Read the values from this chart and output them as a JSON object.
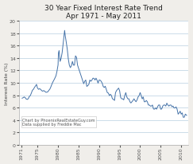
{
  "title_line1": "30 Year Fixed Interest Rate Trend",
  "title_line2": "Apr 1971 - May 2011",
  "ylabel": "Interest Rate (%)",
  "annotation1": "Chart by PhoenixRealEstateGuy.com",
  "annotation2": "Data supplied by Freddie Mac",
  "line_color": "#4472a8",
  "background_color": "#f0eeea",
  "plot_bg_color": "#ffffff",
  "ylim": [
    0,
    20
  ],
  "xlim": [
    1970.5,
    2011.8
  ],
  "yticks": [
    0,
    2,
    4,
    6,
    8,
    10,
    12,
    14,
    16,
    18,
    20
  ],
  "xtick_years": [
    1971,
    1975,
    1980,
    1985,
    1990,
    1995,
    2000,
    2005,
    2010
  ],
  "grid_color": "#b8cfe0",
  "title_fontsize": 6.5,
  "axis_fontsize": 4.5,
  "ylabel_fontsize": 4.5,
  "annotation_fontsize": 3.6,
  "data_years": [
    1971.25,
    1971.5,
    1971.75,
    1972.0,
    1972.25,
    1972.5,
    1972.75,
    1973.0,
    1973.25,
    1973.5,
    1973.75,
    1974.0,
    1974.25,
    1974.5,
    1974.75,
    1975.0,
    1975.25,
    1975.5,
    1975.75,
    1976.0,
    1976.25,
    1976.5,
    1976.75,
    1977.0,
    1977.25,
    1977.5,
    1977.75,
    1978.0,
    1978.25,
    1978.5,
    1978.75,
    1979.0,
    1979.25,
    1979.5,
    1979.75,
    1980.0,
    1980.1,
    1980.25,
    1980.5,
    1980.75,
    1981.0,
    1981.25,
    1981.5,
    1981.6,
    1981.75,
    1982.0,
    1982.25,
    1982.5,
    1982.75,
    1983.0,
    1983.25,
    1983.5,
    1983.75,
    1984.0,
    1984.25,
    1984.5,
    1984.75,
    1985.0,
    1985.25,
    1985.5,
    1985.75,
    1986.0,
    1986.25,
    1986.5,
    1986.75,
    1987.0,
    1987.25,
    1987.5,
    1987.75,
    1988.0,
    1988.25,
    1988.5,
    1988.75,
    1989.0,
    1989.25,
    1989.5,
    1989.75,
    1990.0,
    1990.25,
    1990.5,
    1990.75,
    1991.0,
    1991.25,
    1991.5,
    1991.75,
    1992.0,
    1992.25,
    1992.5,
    1992.75,
    1993.0,
    1993.25,
    1993.5,
    1993.75,
    1994.0,
    1994.25,
    1994.5,
    1994.75,
    1995.0,
    1995.25,
    1995.5,
    1995.75,
    1996.0,
    1996.25,
    1996.5,
    1996.75,
    1997.0,
    1997.25,
    1997.5,
    1997.75,
    1998.0,
    1998.25,
    1998.5,
    1998.75,
    1999.0,
    1999.25,
    1999.5,
    1999.75,
    2000.0,
    2000.25,
    2000.5,
    2000.75,
    2001.0,
    2001.25,
    2001.5,
    2001.75,
    2002.0,
    2002.25,
    2002.5,
    2002.75,
    2003.0,
    2003.25,
    2003.5,
    2003.75,
    2004.0,
    2004.25,
    2004.5,
    2004.75,
    2005.0,
    2005.25,
    2005.5,
    2005.75,
    2006.0,
    2006.25,
    2006.5,
    2006.75,
    2007.0,
    2007.25,
    2007.5,
    2007.75,
    2008.0,
    2008.25,
    2008.5,
    2008.75,
    2009.0,
    2009.25,
    2009.5,
    2009.75,
    2010.0,
    2010.25,
    2010.5,
    2010.75,
    2011.0,
    2011.33
  ],
  "data_rates": [
    7.52,
    7.6,
    7.72,
    7.6,
    7.38,
    7.32,
    7.44,
    7.8,
    7.95,
    8.35,
    8.8,
    8.95,
    9.25,
    9.48,
    9.75,
    9.15,
    8.95,
    9.05,
    8.95,
    8.75,
    8.65,
    8.75,
    8.65,
    8.48,
    8.48,
    8.55,
    8.78,
    8.98,
    9.35,
    9.78,
    10.15,
    10.45,
    10.78,
    11.15,
    11.9,
    12.88,
    14.8,
    15.2,
    13.45,
    13.95,
    14.88,
    16.4,
    17.8,
    18.45,
    17.6,
    16.55,
    15.4,
    13.85,
    12.85,
    12.45,
    12.75,
    13.45,
    12.85,
    12.85,
    14.35,
    14.1,
    12.85,
    12.35,
    11.85,
    11.35,
    10.85,
    10.35,
    9.85,
    10.25,
    10.45,
    9.42,
    9.55,
    9.75,
    10.45,
    10.25,
    10.45,
    10.75,
    10.72,
    10.45,
    10.75,
    10.42,
    9.95,
    10.45,
    10.42,
    10.25,
    9.95,
    9.42,
    9.25,
    9.45,
    8.95,
    8.42,
    8.35,
    7.95,
    8.15,
    7.95,
    7.42,
    7.35,
    7.15,
    8.42,
    8.75,
    8.95,
    9.15,
    8.72,
    7.65,
    7.42,
    7.42,
    7.25,
    7.95,
    8.42,
    7.72,
    7.42,
    7.42,
    6.95,
    6.75,
    6.95,
    7.15,
    7.42,
    7.15,
    6.95,
    7.25,
    7.72,
    7.95,
    8.42,
    7.95,
    7.42,
    7.72,
    6.95,
    6.95,
    7.15,
    6.95,
    6.42,
    6.42,
    6.25,
    6.25,
    6.42,
    5.78,
    5.75,
    5.95,
    5.75,
    6.15,
    6.42,
    6.42,
    5.75,
    5.78,
    6.25,
    6.42,
    6.42,
    6.25,
    6.72,
    6.42,
    6.25,
    6.42,
    6.42,
    6.15,
    6.25,
    5.95,
    5.95,
    6.12,
    5.75,
    4.95,
    5.15,
    5.42,
    4.95,
    5.15,
    4.45,
    4.45,
    4.95,
    4.75
  ]
}
